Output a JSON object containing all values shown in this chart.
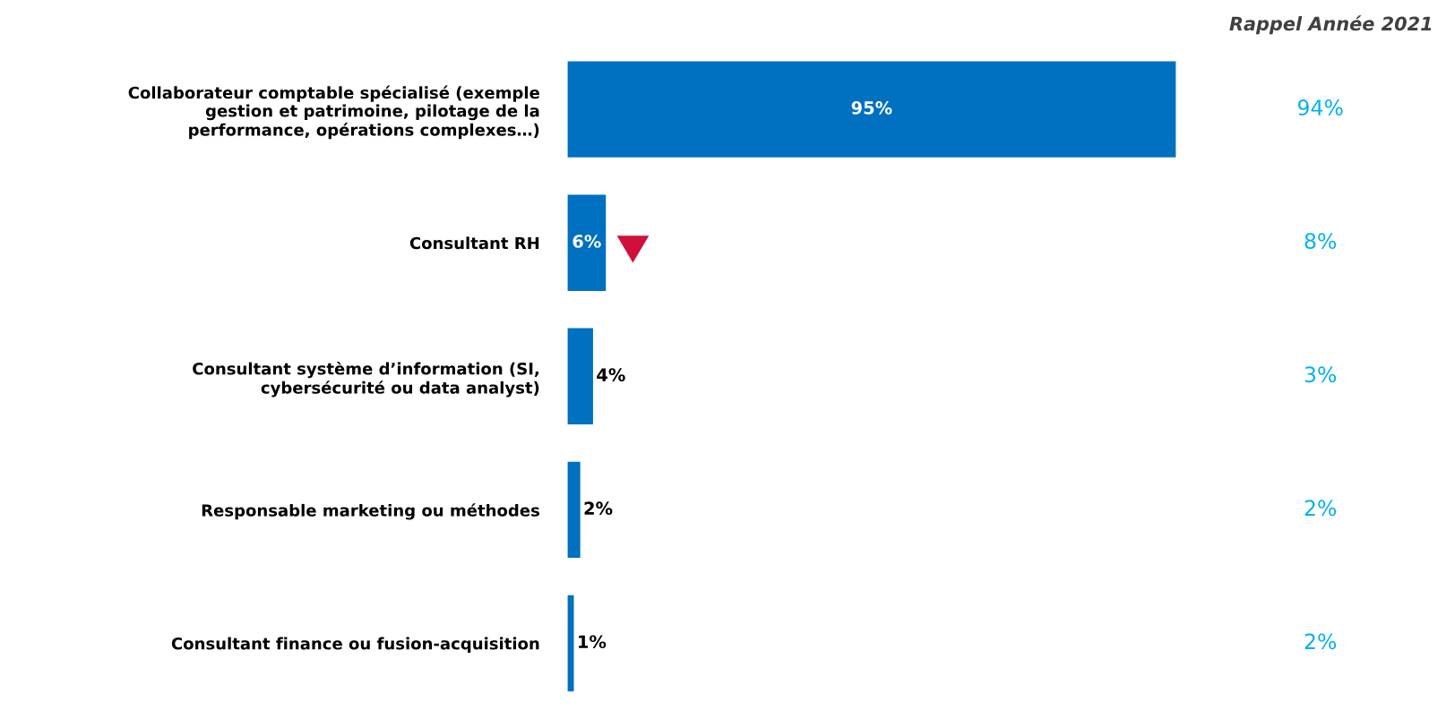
{
  "chart_data": {
    "type": "bar",
    "orientation": "horizontal",
    "categories": [
      "Collaborateur comptable spécialisé (exemple\ngestion et patrimoine, pilotage de la\nperformance, opérations complexes…)",
      "Consultant RH",
      "Consultant système d’information (SI,\ncybersécurité ou data analyst)",
      "Responsable marketing ou méthodes",
      "Consultant finance ou fusion-acquisition"
    ],
    "values": [
      95,
      6,
      4,
      2,
      1
    ],
    "value_labels": [
      "95%",
      "6%",
      "4%",
      "2%",
      "1%"
    ],
    "color": "#0070c0",
    "annotations": [
      "Rappel Année 2021",
      "94%",
      "8%",
      "3%",
      "2%",
      "2%"
    ]
  }
}
